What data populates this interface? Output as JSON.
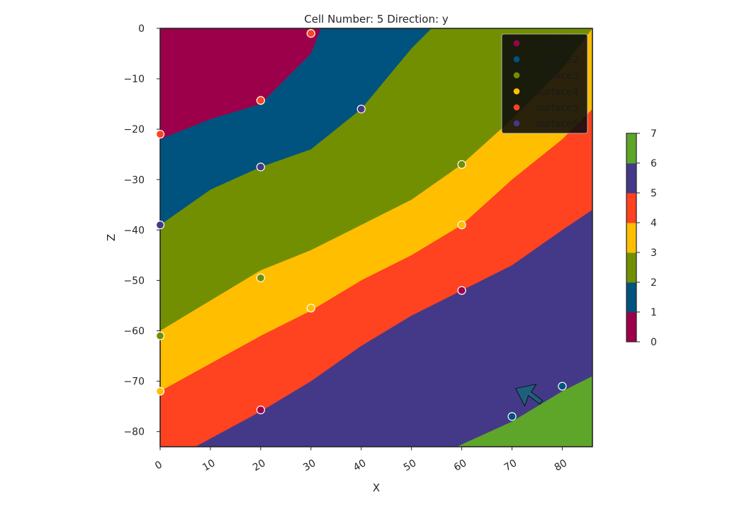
{
  "chart_data": {
    "type": "heatmap",
    "title": "Cell Number: 5 Direction: y",
    "xlabel": "X",
    "ylabel": "Z",
    "xlim": [
      0,
      86
    ],
    "ylim": [
      -83,
      0
    ],
    "x_ticks": [
      0,
      10,
      20,
      30,
      40,
      50,
      60,
      70,
      80
    ],
    "y_ticks": [
      0,
      -10,
      -20,
      -30,
      -40,
      -50,
      -60,
      -70,
      -80
    ],
    "grid": false,
    "units_colors": [
      "#9c004b",
      "#00537e",
      "#728f02",
      "#ffbe00",
      "#ff4220",
      "#443988",
      "#5da629"
    ],
    "boundaries": [
      {
        "between": "0|1",
        "points": [
          [
            0,
            -22
          ],
          [
            10,
            -18
          ],
          [
            20,
            -15
          ],
          [
            30,
            -5
          ],
          [
            32,
            0
          ]
        ]
      },
      {
        "between": "1|2",
        "points": [
          [
            0,
            -39
          ],
          [
            10,
            -32
          ],
          [
            20,
            -27.5
          ],
          [
            30,
            -24
          ],
          [
            40,
            -16
          ],
          [
            50,
            -4
          ],
          [
            54,
            0
          ]
        ]
      },
      {
        "between": "2|3",
        "points": [
          [
            0,
            -60
          ],
          [
            20,
            -48
          ],
          [
            30,
            -44
          ],
          [
            40,
            -39
          ],
          [
            50,
            -34
          ],
          [
            60,
            -27
          ],
          [
            70,
            -18
          ],
          [
            80,
            -8
          ],
          [
            86,
            0
          ]
        ]
      },
      {
        "between": "3|4",
        "points": [
          [
            0,
            -72
          ],
          [
            20,
            -61
          ],
          [
            30,
            -56
          ],
          [
            40,
            -50
          ],
          [
            50,
            -45
          ],
          [
            60,
            -39
          ],
          [
            70,
            -30
          ],
          [
            80,
            -22
          ],
          [
            86,
            -16
          ]
        ]
      },
      {
        "between": "4|5",
        "points": [
          [
            7,
            -83
          ],
          [
            20,
            -76
          ],
          [
            30,
            -70
          ],
          [
            40,
            -63
          ],
          [
            50,
            -57
          ],
          [
            60,
            -52
          ],
          [
            70,
            -47
          ],
          [
            80,
            -40
          ],
          [
            86,
            -36
          ]
        ]
      },
      {
        "between": "5|6",
        "points": [
          [
            59,
            -83
          ],
          [
            70,
            -78
          ],
          [
            80,
            -72
          ],
          [
            86,
            -69
          ]
        ]
      }
    ],
    "points": [
      {
        "x": 30,
        "z": -1,
        "unit": 4
      },
      {
        "x": 20,
        "z": -14.3,
        "unit": 4
      },
      {
        "x": 40,
        "z": -16,
        "unit": 5
      },
      {
        "x": 0,
        "z": -21,
        "unit": 4
      },
      {
        "x": 20,
        "z": -27.5,
        "unit": 5
      },
      {
        "x": 60,
        "z": -27,
        "unit": 2
      },
      {
        "x": 0,
        "z": -39,
        "unit": 5
      },
      {
        "x": 60,
        "z": -39,
        "unit": 3
      },
      {
        "x": 20,
        "z": -49.5,
        "unit": 2
      },
      {
        "x": 60,
        "z": -52,
        "unit": 0
      },
      {
        "x": 30,
        "z": -55.5,
        "unit": 3
      },
      {
        "x": 0,
        "z": -61,
        "unit": 2
      },
      {
        "x": 0,
        "z": -72,
        "unit": 3
      },
      {
        "x": 20,
        "z": -75.7,
        "unit": 0
      },
      {
        "x": 70,
        "z": -77,
        "unit": 1
      },
      {
        "x": 80,
        "z": -71,
        "unit": 1
      }
    ],
    "legend": {
      "placement": "top-right",
      "entries": [
        {
          "label": "surface1",
          "color": "#9c004b"
        },
        {
          "label": "surface2",
          "color": "#00537e"
        },
        {
          "label": "surface3",
          "color": "#728f02"
        },
        {
          "label": "surface4",
          "color": "#ffbe00"
        },
        {
          "label": "surface5",
          "color": "#ff4220"
        },
        {
          "label": "surface6",
          "color": "#443988"
        }
      ]
    },
    "colorbar": {
      "ticks": [
        0,
        1,
        2,
        3,
        4,
        5,
        6,
        7
      ],
      "colors": [
        "#9c004b",
        "#00537e",
        "#728f02",
        "#ffbe00",
        "#ff4220",
        "#443988",
        "#5da629"
      ]
    },
    "arrow": {
      "x": 71,
      "z": -72,
      "color": "#1f5f7e"
    }
  }
}
